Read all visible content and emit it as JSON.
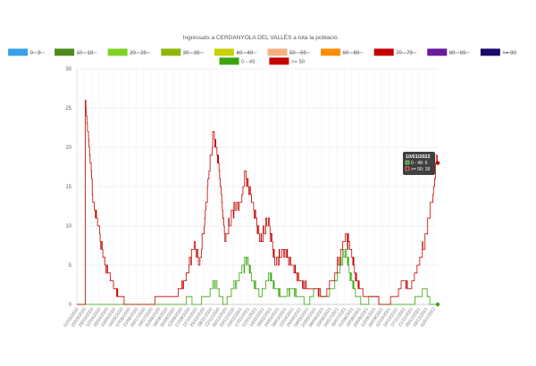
{
  "chart_data": {
    "type": "line",
    "title": "Ingressats a CERDANYOLA DEL VALLÈS a tota la població.",
    "ylim": [
      0,
      30
    ],
    "yticks": [
      0,
      5,
      10,
      15,
      20,
      25,
      30
    ],
    "grid": true,
    "legend_position": "top",
    "x_label_stride": 14,
    "legend": [
      {
        "label": "0 - 9",
        "color": "#36a2eb",
        "hidden": true
      },
      {
        "label": "10 - 19",
        "color": "#4d8c1a",
        "hidden": true
      },
      {
        "label": "20 - 29",
        "color": "#7ed321",
        "hidden": true
      },
      {
        "label": "30 - 39",
        "color": "#8db600",
        "hidden": true
      },
      {
        "label": "40 - 49",
        "color": "#c5d100",
        "hidden": true
      },
      {
        "label": "50 - 59",
        "color": "#f5b082",
        "hidden": true
      },
      {
        "label": "60 - 69",
        "color": "#ff8c00",
        "hidden": true
      },
      {
        "label": "70 - 79",
        "color": "#c40000",
        "hidden": true
      },
      {
        "label": "80 - 89",
        "color": "#6a1b9a",
        "hidden": true
      },
      {
        "label": ">= 90",
        "color": "#1a0a6b",
        "hidden": true
      },
      {
        "label": "0 - 49",
        "color": "#3aa50b",
        "hidden": false
      },
      {
        "label": ">= 50",
        "color": "#c40000",
        "hidden": false
      }
    ],
    "start_date": "01/03/2020",
    "end_date": "10/01/2022",
    "series": [
      {
        "name": "0 - 49",
        "color": "#3aa50b",
        "keyframes": [
          [
            "01/03/2020",
            0
          ],
          [
            "20/09/2020",
            0
          ],
          [
            "25/09/2020",
            1
          ],
          [
            "12/10/2020",
            0
          ],
          [
            "01/11/2020",
            1
          ],
          [
            "10/11/2020",
            2
          ],
          [
            "18/11/2020",
            3
          ],
          [
            "25/11/2020",
            1
          ],
          [
            "05/12/2020",
            0
          ],
          [
            "20/12/2020",
            2
          ],
          [
            "05/01/2021",
            4
          ],
          [
            "15/01/2021",
            6
          ],
          [
            "25/01/2021",
            3
          ],
          [
            "10/02/2021",
            1
          ],
          [
            "25/02/2021",
            4
          ],
          [
            "10/03/2021",
            2
          ],
          [
            "25/03/2021",
            1
          ],
          [
            "10/04/2021",
            2
          ],
          [
            "25/04/2021",
            1
          ],
          [
            "10/05/2021",
            0
          ],
          [
            "25/05/2021",
            2
          ],
          [
            "10/06/2021",
            1
          ],
          [
            "25/06/2021",
            2
          ],
          [
            "10/07/2021",
            5
          ],
          [
            "20/07/2021",
            7
          ],
          [
            "28/07/2021",
            4
          ],
          [
            "10/08/2021",
            1
          ],
          [
            "25/08/2021",
            0
          ],
          [
            "10/09/2021",
            1
          ],
          [
            "01/10/2021",
            0
          ],
          [
            "20/11/2021",
            0
          ],
          [
            "05/12/2021",
            1
          ],
          [
            "18/12/2021",
            2
          ],
          [
            "28/12/2021",
            0
          ],
          [
            "10/01/2022",
            0
          ]
        ]
      },
      {
        "name": ">= 50",
        "color": "#c40000",
        "keyframes": [
          [
            "01/03/2020",
            0
          ],
          [
            "16/03/2020",
            0
          ],
          [
            "17/03/2020",
            26
          ],
          [
            "24/03/2020",
            20
          ],
          [
            "01/04/2020",
            13
          ],
          [
            "10/04/2020",
            10
          ],
          [
            "20/04/2020",
            6
          ],
          [
            "05/05/2020",
            3
          ],
          [
            "20/05/2020",
            1
          ],
          [
            "05/06/2020",
            0
          ],
          [
            "15/07/2020",
            0
          ],
          [
            "05/08/2020",
            1
          ],
          [
            "05/09/2020",
            1
          ],
          [
            "25/09/2020",
            4
          ],
          [
            "08/10/2020",
            8
          ],
          [
            "18/10/2020",
            5
          ],
          [
            "28/10/2020",
            11
          ],
          [
            "05/11/2020",
            17
          ],
          [
            "14/11/2020",
            22
          ],
          [
            "24/11/2020",
            17
          ],
          [
            "05/12/2020",
            8
          ],
          [
            "20/12/2020",
            12
          ],
          [
            "05/01/2021",
            13
          ],
          [
            "12/01/2021",
            17
          ],
          [
            "25/01/2021",
            13
          ],
          [
            "10/02/2021",
            8
          ],
          [
            "25/02/2021",
            11
          ],
          [
            "10/03/2021",
            5
          ],
          [
            "25/03/2021",
            7
          ],
          [
            "10/04/2021",
            5
          ],
          [
            "25/04/2021",
            3
          ],
          [
            "10/05/2021",
            2
          ],
          [
            "25/05/2021",
            2
          ],
          [
            "10/06/2021",
            1
          ],
          [
            "25/06/2021",
            3
          ],
          [
            "10/07/2021",
            6
          ],
          [
            "20/07/2021",
            9
          ],
          [
            "30/07/2021",
            7
          ],
          [
            "10/08/2021",
            3
          ],
          [
            "25/08/2021",
            1
          ],
          [
            "10/09/2021",
            1
          ],
          [
            "01/10/2021",
            0
          ],
          [
            "25/10/2021",
            1
          ],
          [
            "05/11/2021",
            3
          ],
          [
            "20/11/2021",
            2
          ],
          [
            "05/12/2021",
            5
          ],
          [
            "20/12/2021",
            9
          ],
          [
            "01/01/2022",
            14
          ],
          [
            "08/01/2022",
            19
          ],
          [
            "10/01/2022",
            18
          ]
        ]
      }
    ],
    "tooltip": {
      "title": "10/01/2022",
      "lines": [
        "0 - 49: 0",
        ">= 50: 18"
      ]
    }
  }
}
